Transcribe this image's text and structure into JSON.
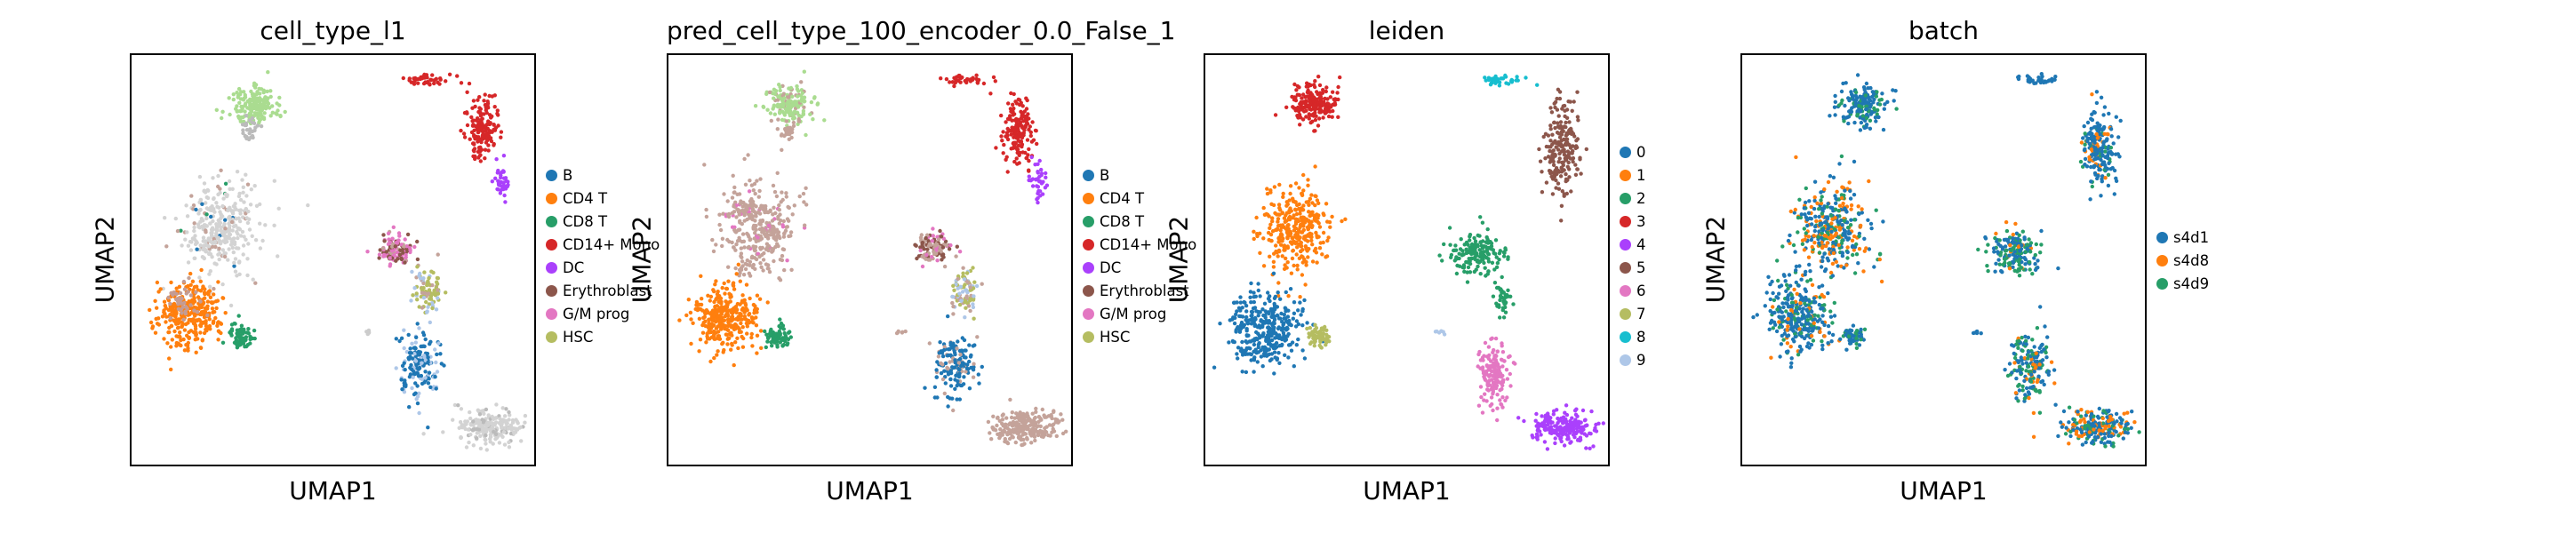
{
  "chart_data": [
    {
      "type": "scatter",
      "title": "cell_type_l1",
      "xlabel": "UMAP1",
      "ylabel": "UMAP2",
      "legend": {
        "placement": "right",
        "entries": [
          {
            "label": "B",
            "color": "#1f77b4"
          },
          {
            "label": "CD4 T",
            "color": "#ff7f0e"
          },
          {
            "label": "CD8 T",
            "color": "#279e68"
          },
          {
            "label": "CD14+ Mono",
            "color": "#d62728"
          },
          {
            "label": "DC",
            "color": "#aa40fc"
          },
          {
            "label": "Erythroblast",
            "color": "#8c564b"
          },
          {
            "label": "G/M prog",
            "color": "#e377c2"
          },
          {
            "label": "HSC",
            "color": "#b5bd61"
          }
        ]
      },
      "clusters": [
        {
          "x": 0.3,
          "y": 0.12,
          "rx": 0.055,
          "ry": 0.045,
          "n": 180,
          "colors": [
            "#aadc90"
          ],
          "weights": [
            1
          ]
        },
        {
          "x": 0.29,
          "y": 0.18,
          "rx": 0.02,
          "ry": 0.03,
          "n": 30,
          "colors": [
            "#bbbbbb"
          ],
          "weights": [
            1
          ]
        },
        {
          "x": 0.73,
          "y": 0.06,
          "rx": 0.06,
          "ry": 0.015,
          "n": 40,
          "colors": [
            "#d62728"
          ],
          "weights": [
            1
          ]
        },
        {
          "x": 0.86,
          "y": 0.18,
          "rx": 0.04,
          "ry": 0.08,
          "n": 160,
          "colors": [
            "#d62728"
          ],
          "weights": [
            1
          ]
        },
        {
          "x": 0.91,
          "y": 0.31,
          "rx": 0.02,
          "ry": 0.04,
          "n": 40,
          "colors": [
            "#aa40fc"
          ],
          "weights": [
            1
          ]
        },
        {
          "x": 0.22,
          "y": 0.42,
          "rx": 0.09,
          "ry": 0.11,
          "n": 350,
          "colors": [
            "#d3d3d3",
            "#c4a39a",
            "#279e68",
            "#1f77b4"
          ],
          "weights": [
            0.83,
            0.12,
            0.03,
            0.02
          ]
        },
        {
          "x": 0.14,
          "y": 0.63,
          "rx": 0.08,
          "ry": 0.08,
          "n": 320,
          "colors": [
            "#ff7f0e"
          ],
          "weights": [
            1
          ]
        },
        {
          "x": 0.13,
          "y": 0.6,
          "rx": 0.05,
          "ry": 0.04,
          "n": 40,
          "colors": [
            "#c49c94"
          ],
          "weights": [
            1
          ]
        },
        {
          "x": 0.27,
          "y": 0.68,
          "rx": 0.03,
          "ry": 0.03,
          "n": 70,
          "colors": [
            "#279e68"
          ],
          "weights": [
            1
          ]
        },
        {
          "x": 0.65,
          "y": 0.47,
          "rx": 0.045,
          "ry": 0.04,
          "n": 110,
          "colors": [
            "#e377c2",
            "#8c564b",
            "#c4a39a"
          ],
          "weights": [
            0.55,
            0.35,
            0.1
          ]
        },
        {
          "x": 0.73,
          "y": 0.57,
          "rx": 0.035,
          "ry": 0.06,
          "n": 90,
          "colors": [
            "#b5bd61",
            "#aec7e8",
            "#c4a39a"
          ],
          "weights": [
            0.55,
            0.25,
            0.2
          ]
        },
        {
          "x": 0.71,
          "y": 0.75,
          "rx": 0.05,
          "ry": 0.08,
          "n": 160,
          "colors": [
            "#1f77b4",
            "#aec7e8"
          ],
          "weights": [
            0.7,
            0.3
          ]
        },
        {
          "x": 0.88,
          "y": 0.9,
          "rx": 0.09,
          "ry": 0.04,
          "n": 230,
          "colors": [
            "#d3d3d3",
            "#bbbbbb"
          ],
          "weights": [
            0.85,
            0.15
          ]
        },
        {
          "x": 0.58,
          "y": 0.67,
          "rx": 0.015,
          "ry": 0.005,
          "n": 6,
          "colors": [
            "#cccccc"
          ],
          "weights": [
            1
          ]
        }
      ]
    },
    {
      "type": "scatter",
      "title": "pred_cell_type_100_encoder_0.0_False_1",
      "xlabel": "UMAP1",
      "ylabel": "UMAP2",
      "legend": {
        "placement": "right",
        "entries": [
          {
            "label": "B",
            "color": "#1f77b4"
          },
          {
            "label": "CD4 T",
            "color": "#ff7f0e"
          },
          {
            "label": "CD8 T",
            "color": "#279e68"
          },
          {
            "label": "CD14+ Mono",
            "color": "#d62728"
          },
          {
            "label": "DC",
            "color": "#aa40fc"
          },
          {
            "label": "Erythroblast",
            "color": "#8c564b"
          },
          {
            "label": "G/M prog",
            "color": "#e377c2"
          },
          {
            "label": "HSC",
            "color": "#b5bd61"
          }
        ]
      },
      "clusters": [
        {
          "x": 0.3,
          "y": 0.12,
          "rx": 0.055,
          "ry": 0.045,
          "n": 180,
          "colors": [
            "#aadc90",
            "#c4a39a"
          ],
          "weights": [
            0.8,
            0.2
          ]
        },
        {
          "x": 0.29,
          "y": 0.18,
          "rx": 0.02,
          "ry": 0.03,
          "n": 30,
          "colors": [
            "#c4a39a"
          ],
          "weights": [
            1
          ]
        },
        {
          "x": 0.73,
          "y": 0.06,
          "rx": 0.06,
          "ry": 0.015,
          "n": 40,
          "colors": [
            "#d62728"
          ],
          "weights": [
            1
          ]
        },
        {
          "x": 0.86,
          "y": 0.18,
          "rx": 0.04,
          "ry": 0.08,
          "n": 160,
          "colors": [
            "#d62728"
          ],
          "weights": [
            1
          ]
        },
        {
          "x": 0.91,
          "y": 0.31,
          "rx": 0.02,
          "ry": 0.04,
          "n": 40,
          "colors": [
            "#aa40fc"
          ],
          "weights": [
            1
          ]
        },
        {
          "x": 0.22,
          "y": 0.42,
          "rx": 0.09,
          "ry": 0.11,
          "n": 350,
          "colors": [
            "#c4a39a",
            "#e377c2"
          ],
          "weights": [
            0.9,
            0.1
          ]
        },
        {
          "x": 0.14,
          "y": 0.63,
          "rx": 0.08,
          "ry": 0.08,
          "n": 320,
          "colors": [
            "#ff7f0e"
          ],
          "weights": [
            1
          ]
        },
        {
          "x": 0.27,
          "y": 0.68,
          "rx": 0.03,
          "ry": 0.03,
          "n": 70,
          "colors": [
            "#279e68"
          ],
          "weights": [
            1
          ]
        },
        {
          "x": 0.65,
          "y": 0.47,
          "rx": 0.045,
          "ry": 0.04,
          "n": 110,
          "colors": [
            "#c4a39a",
            "#8c564b",
            "#e377c2"
          ],
          "weights": [
            0.5,
            0.3,
            0.2
          ]
        },
        {
          "x": 0.73,
          "y": 0.57,
          "rx": 0.035,
          "ry": 0.06,
          "n": 90,
          "colors": [
            "#b5bd61",
            "#c4a39a",
            "#aec7e8"
          ],
          "weights": [
            0.55,
            0.25,
            0.2
          ]
        },
        {
          "x": 0.71,
          "y": 0.75,
          "rx": 0.05,
          "ry": 0.08,
          "n": 160,
          "colors": [
            "#1f77b4",
            "#c4a39a"
          ],
          "weights": [
            0.75,
            0.25
          ]
        },
        {
          "x": 0.88,
          "y": 0.9,
          "rx": 0.09,
          "ry": 0.04,
          "n": 230,
          "colors": [
            "#c4a39a"
          ],
          "weights": [
            1
          ]
        },
        {
          "x": 0.58,
          "y": 0.67,
          "rx": 0.015,
          "ry": 0.005,
          "n": 6,
          "colors": [
            "#c4a39a"
          ],
          "weights": [
            1
          ]
        }
      ]
    },
    {
      "type": "scatter",
      "title": "leiden",
      "xlabel": "UMAP1",
      "ylabel": "UMAP2",
      "legend": {
        "placement": "right",
        "entries": [
          {
            "label": "0",
            "color": "#1f77b4"
          },
          {
            "label": "1",
            "color": "#ff7f0e"
          },
          {
            "label": "2",
            "color": "#279e68"
          },
          {
            "label": "3",
            "color": "#d62728"
          },
          {
            "label": "4",
            "color": "#aa40fc"
          },
          {
            "label": "5",
            "color": "#8c564b"
          },
          {
            "label": "6",
            "color": "#e377c2"
          },
          {
            "label": "7",
            "color": "#b5bd61"
          },
          {
            "label": "8",
            "color": "#17becf"
          },
          {
            "label": "9",
            "color": "#aec7e8"
          }
        ]
      },
      "clusters": [
        {
          "x": 0.27,
          "y": 0.12,
          "rx": 0.06,
          "ry": 0.05,
          "n": 180,
          "colors": [
            "#d62728"
          ],
          "weights": [
            1
          ]
        },
        {
          "x": 0.73,
          "y": 0.06,
          "rx": 0.05,
          "ry": 0.012,
          "n": 40,
          "colors": [
            "#17becf"
          ],
          "weights": [
            1
          ]
        },
        {
          "x": 0.88,
          "y": 0.22,
          "rx": 0.04,
          "ry": 0.11,
          "n": 200,
          "colors": [
            "#8c564b"
          ],
          "weights": [
            1
          ]
        },
        {
          "x": 0.22,
          "y": 0.42,
          "rx": 0.08,
          "ry": 0.1,
          "n": 320,
          "colors": [
            "#ff7f0e"
          ],
          "weights": [
            1
          ]
        },
        {
          "x": 0.14,
          "y": 0.66,
          "rx": 0.09,
          "ry": 0.09,
          "n": 340,
          "colors": [
            "#1f77b4"
          ],
          "weights": [
            1
          ]
        },
        {
          "x": 0.28,
          "y": 0.68,
          "rx": 0.03,
          "ry": 0.03,
          "n": 70,
          "colors": [
            "#b5bd61"
          ],
          "weights": [
            1
          ]
        },
        {
          "x": 0.67,
          "y": 0.48,
          "rx": 0.07,
          "ry": 0.05,
          "n": 170,
          "colors": [
            "#279e68"
          ],
          "weights": [
            1
          ]
        },
        {
          "x": 0.73,
          "y": 0.59,
          "rx": 0.02,
          "ry": 0.04,
          "n": 40,
          "colors": [
            "#279e68"
          ],
          "weights": [
            1
          ]
        },
        {
          "x": 0.71,
          "y": 0.77,
          "rx": 0.04,
          "ry": 0.08,
          "n": 150,
          "colors": [
            "#e377c2"
          ],
          "weights": [
            1
          ]
        },
        {
          "x": 0.88,
          "y": 0.9,
          "rx": 0.08,
          "ry": 0.04,
          "n": 200,
          "colors": [
            "#aa40fc"
          ],
          "weights": [
            1
          ]
        },
        {
          "x": 0.58,
          "y": 0.67,
          "rx": 0.015,
          "ry": 0.005,
          "n": 6,
          "colors": [
            "#aec7e8"
          ],
          "weights": [
            1
          ]
        }
      ]
    },
    {
      "type": "scatter",
      "title": "batch",
      "xlabel": "UMAP1",
      "ylabel": "UMAP2",
      "legend": {
        "placement": "right",
        "entries": [
          {
            "label": "s4d1",
            "color": "#1f77b4"
          },
          {
            "label": "s4d8",
            "color": "#ff7f0e"
          },
          {
            "label": "s4d9",
            "color": "#279e68"
          }
        ]
      },
      "clusters": [
        {
          "x": 0.3,
          "y": 0.12,
          "rx": 0.06,
          "ry": 0.05,
          "n": 180,
          "colors": [
            "#1f77b4",
            "#279e68"
          ],
          "weights": [
            0.75,
            0.25
          ]
        },
        {
          "x": 0.73,
          "y": 0.06,
          "rx": 0.06,
          "ry": 0.012,
          "n": 30,
          "colors": [
            "#1f77b4"
          ],
          "weights": [
            1
          ]
        },
        {
          "x": 0.88,
          "y": 0.22,
          "rx": 0.04,
          "ry": 0.11,
          "n": 200,
          "colors": [
            "#1f77b4",
            "#ff7f0e",
            "#279e68"
          ],
          "weights": [
            0.7,
            0.2,
            0.1
          ]
        },
        {
          "x": 0.22,
          "y": 0.42,
          "rx": 0.09,
          "ry": 0.11,
          "n": 350,
          "colors": [
            "#1f77b4",
            "#ff7f0e",
            "#279e68"
          ],
          "weights": [
            0.45,
            0.35,
            0.2
          ]
        },
        {
          "x": 0.14,
          "y": 0.63,
          "rx": 0.08,
          "ry": 0.09,
          "n": 320,
          "colors": [
            "#1f77b4",
            "#279e68",
            "#ff7f0e"
          ],
          "weights": [
            0.7,
            0.2,
            0.1
          ]
        },
        {
          "x": 0.27,
          "y": 0.68,
          "rx": 0.03,
          "ry": 0.03,
          "n": 60,
          "colors": [
            "#1f77b4",
            "#279e68"
          ],
          "weights": [
            0.7,
            0.3
          ]
        },
        {
          "x": 0.67,
          "y": 0.48,
          "rx": 0.07,
          "ry": 0.05,
          "n": 170,
          "colors": [
            "#279e68",
            "#1f77b4",
            "#ff7f0e"
          ],
          "weights": [
            0.45,
            0.45,
            0.1
          ]
        },
        {
          "x": 0.71,
          "y": 0.75,
          "rx": 0.05,
          "ry": 0.09,
          "n": 180,
          "colors": [
            "#279e68",
            "#1f77b4",
            "#ff7f0e"
          ],
          "weights": [
            0.4,
            0.4,
            0.2
          ]
        },
        {
          "x": 0.88,
          "y": 0.9,
          "rx": 0.09,
          "ry": 0.04,
          "n": 220,
          "colors": [
            "#1f77b4",
            "#ff7f0e",
            "#279e68"
          ],
          "weights": [
            0.5,
            0.3,
            0.2
          ]
        },
        {
          "x": 0.58,
          "y": 0.67,
          "rx": 0.015,
          "ry": 0.005,
          "n": 6,
          "colors": [
            "#1f77b4"
          ],
          "weights": [
            1
          ]
        }
      ]
    }
  ]
}
